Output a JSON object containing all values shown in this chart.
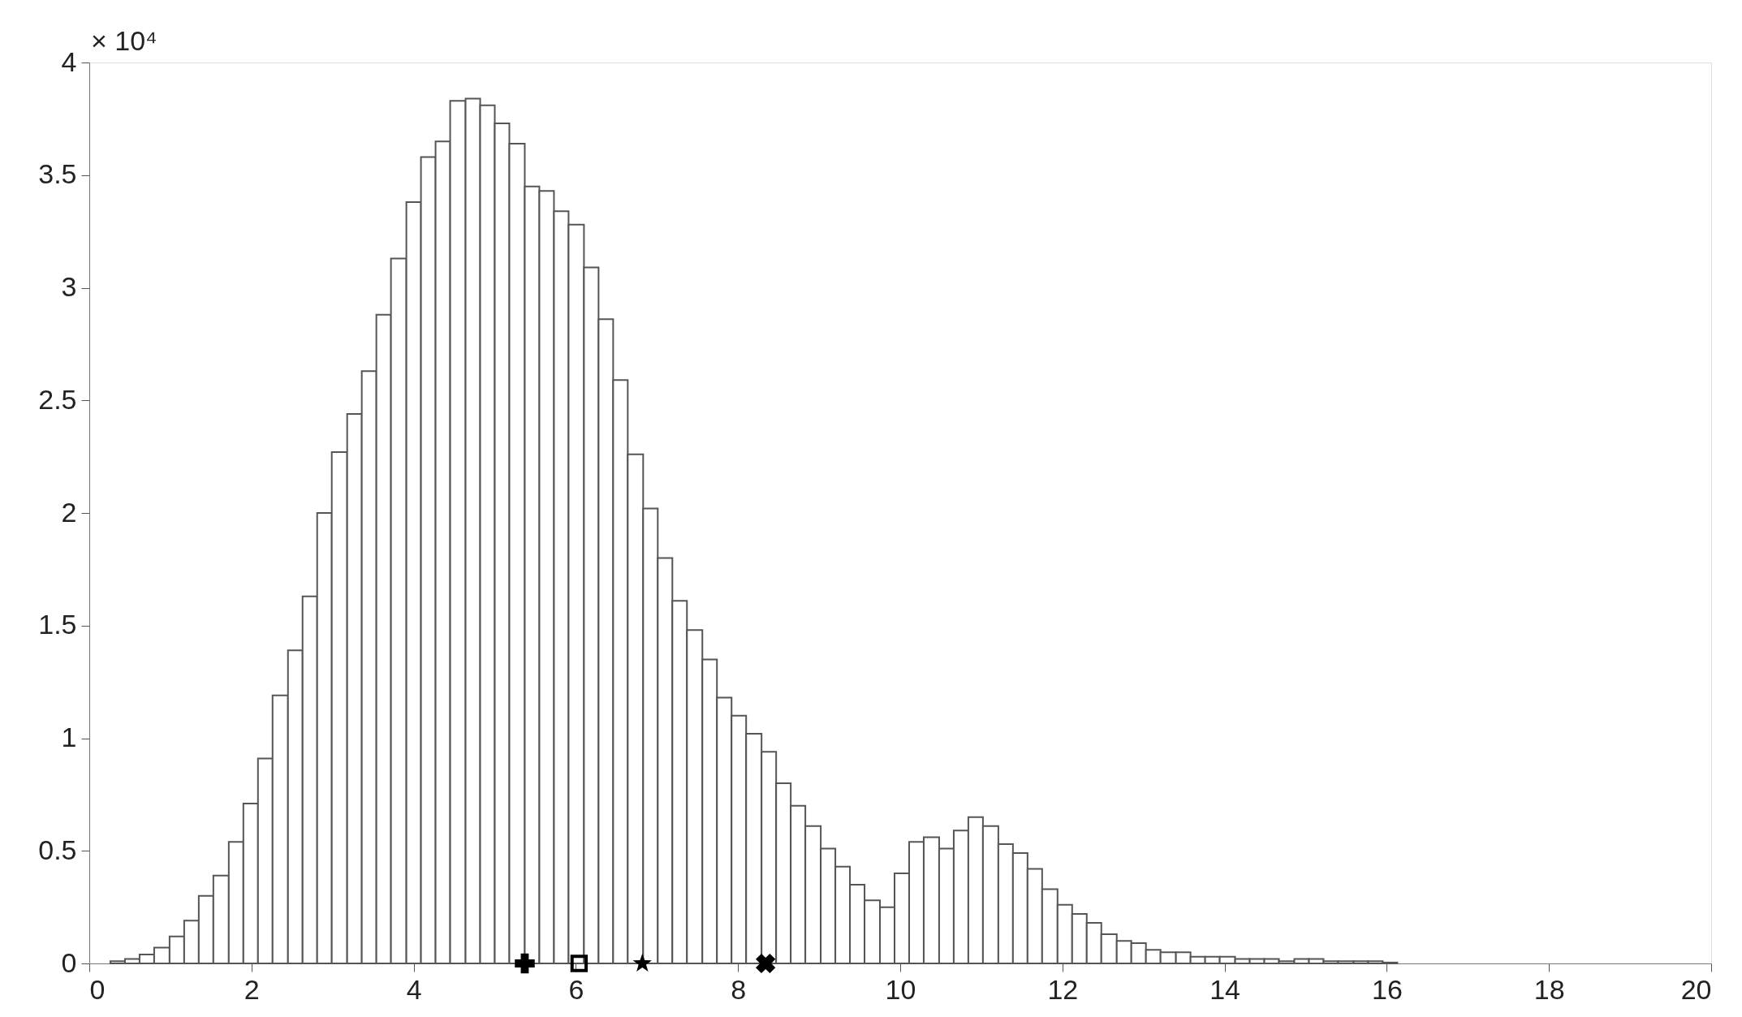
{
  "chart_data": {
    "type": "histogram",
    "bins": [
      0.26,
      0.44,
      0.62,
      0.8,
      0.99,
      1.17,
      1.35,
      1.53,
      1.72,
      1.9,
      2.08,
      2.26,
      2.45,
      2.63,
      2.81,
      2.99,
      3.18,
      3.36,
      3.54,
      3.72,
      3.91,
      4.09,
      4.27,
      4.45,
      4.64,
      4.82,
      5.0,
      5.18,
      5.37,
      5.55,
      5.73,
      5.91,
      6.1,
      6.28,
      6.46,
      6.64,
      6.83,
      7.01,
      7.19,
      7.37,
      7.56,
      7.74,
      7.92,
      8.1,
      8.29,
      8.47,
      8.65,
      8.83,
      9.02,
      9.2,
      9.38,
      9.56,
      9.75,
      9.93,
      10.11,
      10.29,
      10.48,
      10.66,
      10.84,
      11.02,
      11.21,
      11.39,
      11.57,
      11.75,
      11.94,
      12.12,
      12.3,
      12.48,
      12.67,
      12.85,
      13.03,
      13.21,
      13.4,
      13.58,
      13.76,
      13.94,
      14.13,
      14.31,
      14.49,
      14.67,
      14.86,
      15.04,
      15.22,
      15.4,
      15.59,
      15.77,
      15.95,
      16.13
    ],
    "values": [
      0.01,
      0.02,
      0.04,
      0.07,
      0.12,
      0.19,
      0.3,
      0.39,
      0.54,
      0.71,
      0.91,
      1.19,
      1.39,
      1.63,
      2.0,
      2.27,
      2.44,
      2.63,
      2.88,
      3.13,
      3.38,
      3.58,
      3.65,
      3.83,
      3.84,
      3.81,
      3.73,
      3.64,
      3.45,
      3.43,
      3.34,
      3.28,
      3.09,
      2.86,
      2.59,
      2.26,
      2.02,
      1.8,
      1.61,
      1.48,
      1.35,
      1.18,
      1.1,
      1.02,
      0.94,
      0.8,
      0.7,
      0.61,
      0.51,
      0.43,
      0.35,
      0.28,
      0.25,
      0.4,
      0.54,
      0.56,
      0.51,
      0.59,
      0.65,
      0.61,
      0.53,
      0.49,
      0.42,
      0.33,
      0.26,
      0.22,
      0.18,
      0.13,
      0.1,
      0.09,
      0.06,
      0.05,
      0.05,
      0.03,
      0.03,
      0.03,
      0.02,
      0.02,
      0.02,
      0.01,
      0.02,
      0.02,
      0.01,
      0.01,
      0.01,
      0.01,
      0.004
    ],
    "color": "#ffffff",
    "series": [
      {
        "type": "scatter",
        "x": [
          5.37
        ],
        "values": [
          0
        ],
        "marker": "cross",
        "color": "#000000"
      },
      {
        "type": "scatter",
        "x": [
          6.04
        ],
        "values": [
          0
        ],
        "marker": "square",
        "color": "#000000"
      },
      {
        "type": "scatter",
        "x": [
          6.82
        ],
        "values": [
          0
        ],
        "marker": "star",
        "color": "#000000"
      },
      {
        "type": "scatter",
        "x": [
          8.34
        ],
        "values": [
          0
        ],
        "marker": "x",
        "color": "#000000"
      }
    ],
    "xlim": [
      0,
      20
    ],
    "xticks": [
      0,
      2,
      4,
      6,
      8,
      10,
      12,
      14,
      16,
      18,
      20
    ],
    "ylim": [
      0,
      4
    ],
    "yticks": [
      0,
      0.5,
      1,
      1.5,
      2,
      2.5,
      3,
      3.5,
      4
    ],
    "grid": false,
    "annotations": [
      "× 10⁴"
    ]
  }
}
